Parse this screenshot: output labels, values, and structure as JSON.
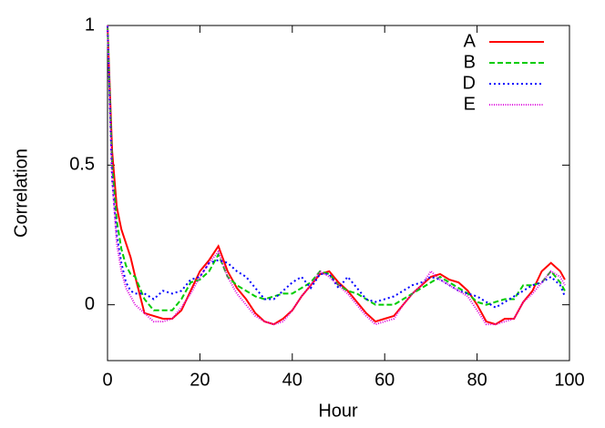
{
  "chart_data": {
    "type": "line",
    "xlabel": "Hour",
    "ylabel": "Correlation",
    "xlim": [
      0,
      100
    ],
    "ylim": [
      -0.2,
      1
    ],
    "xticks": [
      0,
      20,
      40,
      60,
      80,
      100
    ],
    "yticks": [
      0,
      0.5,
      1
    ],
    "grid": false,
    "legend": "top-right",
    "x": [
      0,
      1,
      2,
      3,
      4,
      5,
      6,
      8,
      10,
      12,
      14,
      16,
      18,
      20,
      22,
      24,
      26,
      28,
      30,
      32,
      34,
      36,
      38,
      40,
      42,
      44,
      46,
      48,
      50,
      52,
      54,
      56,
      58,
      60,
      62,
      64,
      66,
      68,
      70,
      72,
      74,
      76,
      78,
      80,
      82,
      84,
      86,
      88,
      90,
      92,
      94,
      96,
      98,
      99
    ],
    "series": [
      {
        "name": "A",
        "color": "#ff0000",
        "dash": "solid",
        "values": [
          1,
          0.55,
          0.35,
          0.27,
          0.22,
          0.17,
          0.1,
          -0.03,
          -0.04,
          -0.05,
          -0.05,
          -0.02,
          0.05,
          0.12,
          0.16,
          0.21,
          0.12,
          0.06,
          0.02,
          -0.03,
          -0.06,
          -0.07,
          -0.05,
          -0.02,
          0.03,
          0.07,
          0.11,
          0.12,
          0.08,
          0.05,
          0.01,
          -0.03,
          -0.06,
          -0.05,
          -0.04,
          0,
          0.04,
          0.07,
          0.1,
          0.11,
          0.09,
          0.08,
          0.05,
          0,
          -0.06,
          -0.07,
          -0.05,
          -0.05,
          0.01,
          0.05,
          0.12,
          0.15,
          0.12,
          0.09
        ]
      },
      {
        "name": "B",
        "color": "#00cc00",
        "dash": "dashed",
        "values": [
          1,
          0.5,
          0.3,
          0.2,
          0.14,
          0.11,
          0.1,
          0.02,
          -0.02,
          -0.02,
          -0.02,
          0.02,
          0.08,
          0.09,
          0.12,
          0.18,
          0.1,
          0.07,
          0.05,
          0.03,
          0.02,
          0.03,
          0.04,
          0.04,
          0.06,
          0.08,
          0.12,
          0.11,
          0.07,
          0.05,
          0.04,
          0.02,
          0,
          0,
          0,
          0.02,
          0.04,
          0.06,
          0.08,
          0.1,
          0.08,
          0.06,
          0.04,
          0.01,
          0,
          0.01,
          0.02,
          0.02,
          0.07,
          0.07,
          0.08,
          0.12,
          0.08,
          0.05
        ]
      },
      {
        "name": "D",
        "color": "#0000ff",
        "dash": "dotted",
        "values": [
          1,
          0.45,
          0.25,
          0.15,
          0.08,
          0.05,
          0.04,
          0.04,
          0.02,
          0.05,
          0.04,
          0.05,
          0.09,
          0.1,
          0.15,
          0.16,
          0.15,
          0.12,
          0.1,
          0.06,
          0.02,
          0.02,
          0.05,
          0.08,
          0.1,
          0.06,
          0.11,
          0.11,
          0.06,
          0.1,
          0.06,
          0.02,
          0.01,
          0.02,
          0.03,
          0.05,
          0.07,
          0.08,
          0.1,
          0.09,
          0.07,
          0.05,
          0.04,
          0.03,
          0.01,
          -0.01,
          0.01,
          0.03,
          0.05,
          0.07,
          0.08,
          0.1,
          0.07,
          0.03
        ]
      },
      {
        "name": "E",
        "color": "#dd00dd",
        "dash": "fine",
        "values": [
          1,
          0.45,
          0.22,
          0.12,
          0.06,
          0.03,
          0,
          -0.03,
          -0.06,
          -0.06,
          -0.05,
          -0.01,
          0.04,
          0.1,
          0.15,
          0.19,
          0.1,
          0.04,
          0,
          -0.04,
          -0.06,
          -0.07,
          -0.06,
          -0.02,
          0.03,
          0.07,
          0.12,
          0.1,
          0.07,
          0.04,
          0,
          -0.04,
          -0.07,
          -0.06,
          -0.05,
          0,
          0.04,
          0.07,
          0.12,
          0.09,
          0.07,
          0.05,
          0.03,
          -0.02,
          -0.07,
          -0.07,
          -0.06,
          -0.05,
          0.01,
          0.04,
          0.08,
          0.12,
          0.1,
          0.07
        ]
      }
    ]
  }
}
